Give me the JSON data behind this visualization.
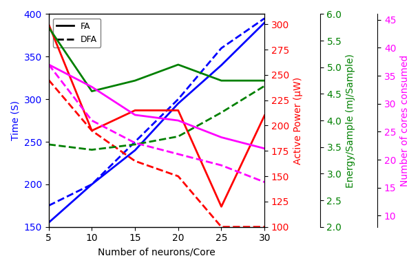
{
  "x": [
    5,
    10,
    15,
    20,
    25,
    30
  ],
  "blue_solid": [
    155,
    200,
    240,
    295,
    340,
    390
  ],
  "blue_dashed": [
    175,
    200,
    250,
    300,
    360,
    395
  ],
  "red_solid": [
    300,
    195,
    215,
    215,
    120,
    210
  ],
  "red_dashed": [
    245,
    195,
    165,
    150,
    100,
    100
  ],
  "green_solid": [
    5.75,
    4.55,
    4.75,
    5.05,
    4.75,
    4.75
  ],
  "green_dashed": [
    3.55,
    3.45,
    3.55,
    3.7,
    4.15,
    4.65
  ],
  "magenta_solid": [
    37,
    33,
    28,
    27,
    24,
    22
  ],
  "magenta_dashed": [
    37,
    27,
    23,
    21,
    19,
    16
  ],
  "xlabel": "Number of neurons/Core",
  "ylabel_left": "Time (S)",
  "ylabel_red": "Active Power (μW)",
  "ylabel_green": "Energy/Sample (mJ/Sample)",
  "ylabel_magenta": "Number of cores consumed",
  "legend_FA": "FA",
  "legend_DFA": "DFA",
  "xlim": [
    5,
    30
  ],
  "ylim_left": [
    150,
    400
  ],
  "ylim_red": [
    100,
    310
  ],
  "ylim_green": [
    2.0,
    6.0
  ],
  "ylim_magenta": [
    8,
    46
  ],
  "xticks": [
    5,
    10,
    15,
    20,
    25,
    30
  ],
  "yticks_left": [
    150,
    200,
    250,
    300,
    350,
    400
  ],
  "yticks_red": [
    100,
    125,
    150,
    175,
    200,
    225,
    250,
    275,
    300
  ],
  "yticks_green": [
    2.0,
    2.5,
    3.0,
    3.5,
    4.0,
    4.5,
    5.0,
    5.5,
    6.0
  ],
  "yticks_magenta": [
    10,
    15,
    20,
    25,
    30,
    35,
    40,
    45
  ],
  "lw": 2.0,
  "fontsize": 10
}
